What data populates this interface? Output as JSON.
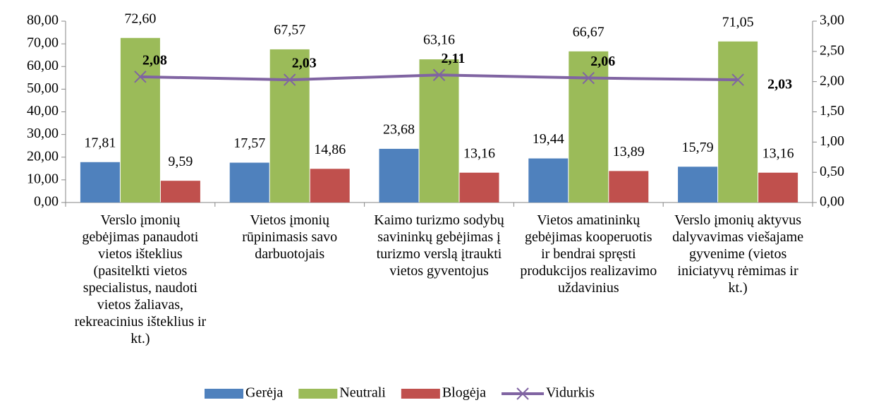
{
  "chart_data": {
    "type": "bar",
    "categories": [
      "Verslo įmonių gebėjimas panaudoti vietos išteklius (pasitelkti vietos specialistus, naudoti vietos žaliavas, rekreacinius išteklius ir kt.)",
      "Vietos įmonių rūpinimasis savo darbuotojais",
      "Kaimo turizmo sodybų savininkų gebėjimas į turizmo verslą įtraukti vietos gyventojus",
      "Vietos amatininkų gebėjimas kooperuotis ir bendrai spręsti produkcijos realizavimo uždavinius",
      "Verslo įmonių aktyvus dalyvavimas viešajame gyvenime (vietos iniciatyvų rėmimas ir kt.)"
    ],
    "series": [
      {
        "name": "Gerėja",
        "color": "#4f81bd",
        "values": [
          17.81,
          17.57,
          23.68,
          19.44,
          15.79
        ],
        "value_labels": [
          "17,81",
          "17,57",
          "23,68",
          "19,44",
          "15,79"
        ]
      },
      {
        "name": "Neutrali",
        "color": "#9bbb59",
        "values": [
          72.6,
          67.57,
          63.16,
          66.67,
          71.05
        ],
        "value_labels": [
          "72,60",
          "67,57",
          "63,16",
          "66,67",
          "71,05"
        ]
      },
      {
        "name": "Blogėja",
        "color": "#c0504d",
        "values": [
          9.59,
          14.86,
          13.16,
          13.89,
          13.16
        ],
        "value_labels": [
          "9,59",
          "14,86",
          "13,16",
          "13,89",
          "13,16"
        ]
      },
      {
        "name": "Vidurkis",
        "type": "line",
        "axis": "y2",
        "color": "#8064a2",
        "values": [
          2.08,
          2.03,
          2.11,
          2.06,
          2.03
        ],
        "value_labels": [
          "2,08",
          "2,03",
          "2,11",
          "2,06",
          "2,03"
        ]
      }
    ],
    "ylim": [
      0,
      80
    ],
    "yticks": [
      {
        "value": 0,
        "label": "0,00"
      },
      {
        "value": 10,
        "label": "10,00"
      },
      {
        "value": 20,
        "label": "20,00"
      },
      {
        "value": 30,
        "label": "30,00"
      },
      {
        "value": 40,
        "label": "40,00"
      },
      {
        "value": 50,
        "label": "50,00"
      },
      {
        "value": 60,
        "label": "60,00"
      },
      {
        "value": 70,
        "label": "70,00"
      },
      {
        "value": 80,
        "label": "80,00"
      }
    ],
    "y2lim": [
      0,
      3
    ],
    "y2ticks": [
      {
        "value": 0,
        "label": "0,00"
      },
      {
        "value": 0.5,
        "label": "0,50"
      },
      {
        "value": 1,
        "label": "1,00"
      },
      {
        "value": 1.5,
        "label": "1,50"
      },
      {
        "value": 2,
        "label": "2,00"
      },
      {
        "value": 2.5,
        "label": "2,50"
      },
      {
        "value": 3,
        "label": "3,00"
      }
    ],
    "legend": "bottom",
    "grid": false
  }
}
